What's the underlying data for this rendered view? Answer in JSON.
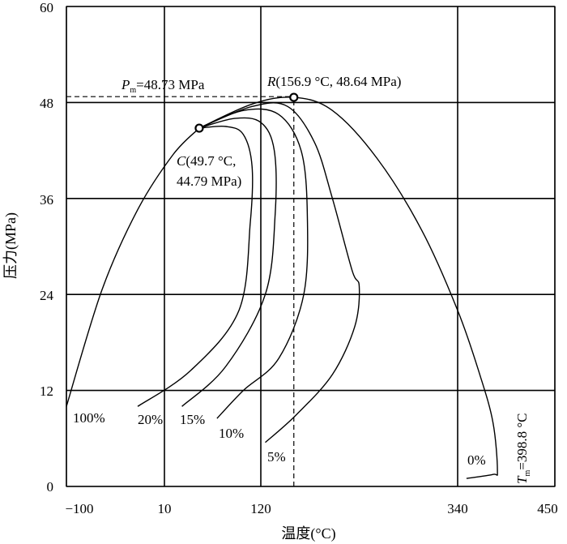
{
  "chart_data": {
    "type": "line",
    "xlabel": "温度(°C)",
    "ylabel": "压力(MPa)",
    "x_ticks": [
      "−100",
      "10",
      "120",
      "340",
      "450"
    ],
    "x_tick_values": [
      -100,
      10,
      120,
      340,
      450
    ],
    "y_ticks": [
      "0",
      "12",
      "24",
      "36",
      "48",
      "60"
    ],
    "y_tick_values": [
      0,
      12,
      24,
      36,
      48,
      60
    ],
    "ylim": [
      0,
      60
    ],
    "grid": true,
    "series": [
      {
        "name": "100%",
        "points": [
          [
            -100,
            10.0
          ],
          [
            -60,
            24.6
          ],
          [
            -20,
            34.6
          ],
          [
            20,
            41.5
          ],
          [
            49.7,
            44.79
          ]
        ]
      },
      {
        "name": "20%",
        "points": [
          [
            49.7,
            44.79
          ],
          [
            80,
            45.0
          ],
          [
            100,
            44.0
          ],
          [
            110,
            40.0
          ],
          [
            108,
            33.0
          ],
          [
            95,
            22.0
          ],
          [
            40,
            14.5
          ],
          [
            -20,
            10.0
          ]
        ]
      },
      {
        "name": "15%",
        "points": [
          [
            49.7,
            44.79
          ],
          [
            90,
            46.0
          ],
          [
            120,
            45.5
          ],
          [
            135,
            42.0
          ],
          [
            136,
            34.0
          ],
          [
            125,
            24.0
          ],
          [
            80,
            15.0
          ],
          [
            30,
            10.0
          ]
        ]
      },
      {
        "name": "10%",
        "points": [
          [
            49.7,
            44.79
          ],
          [
            100,
            47.0
          ],
          [
            140,
            46.5
          ],
          [
            165,
            42.0
          ],
          [
            172,
            34.0
          ],
          [
            168,
            24.0
          ],
          [
            140,
            16.0
          ],
          [
            100,
            12.0
          ],
          [
            70,
            8.5
          ]
        ]
      },
      {
        "name": "5%",
        "points": [
          [
            49.7,
            44.79
          ],
          [
            110,
            47.5
          ],
          [
            150,
            47.5
          ],
          [
            180,
            43.0
          ],
          [
            200,
            36.0
          ],
          [
            222,
            27.0
          ],
          [
            230,
            25.0
          ],
          [
            225,
            20.0
          ],
          [
            200,
            14.0
          ],
          [
            160,
            9.0
          ],
          [
            125,
            5.5
          ]
        ]
      },
      {
        "name": "0%",
        "points": [
          [
            49.7,
            44.79
          ],
          [
            110,
            47.8
          ],
          [
            156.9,
            48.64
          ],
          [
            200,
            47.0
          ],
          [
            250,
            41.0
          ],
          [
            300,
            32.0
          ],
          [
            340,
            22.0
          ],
          [
            365,
            14.0
          ],
          [
            380,
            8.0
          ],
          [
            385,
            2.0
          ],
          [
            380,
            1.5
          ],
          [
            350,
            1.0
          ]
        ]
      }
    ],
    "dashed_guides": [
      {
        "type": "horizontal",
        "y": 48.73,
        "x_from": -100,
        "x_to": 156.9
      },
      {
        "type": "vertical",
        "x": 156.9,
        "y_from": 0,
        "y_to": 48.64
      }
    ],
    "marked_points": [
      {
        "x": 49.7,
        "y": 44.79
      },
      {
        "x": 156.9,
        "y": 48.64
      }
    ],
    "annotations": {
      "pm_sym": "P",
      "pm_sub": "m",
      "pm_text": "=48.73 MPa",
      "r_sym": "R",
      "r_text": "(156.9 °C, 48.64 MPa)",
      "c_sym": "C",
      "c_line1": "(49.7 °C,",
      "c_line2": "44.79 MPa)",
      "tm_sym": "T",
      "tm_sub": "m",
      "tm_text": "=398.8 °C"
    },
    "curve_labels": [
      "100%",
      "20%",
      "15%",
      "10%",
      "5%",
      "0%"
    ]
  }
}
